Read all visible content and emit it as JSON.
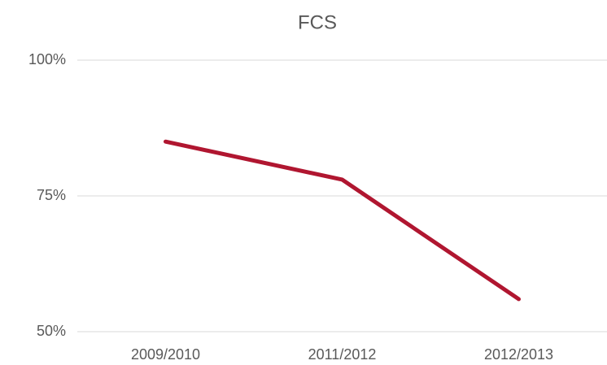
{
  "chart_data": {
    "type": "line",
    "title": "FCS",
    "categories": [
      "2009/2010",
      "2011/2012",
      "2012/2013"
    ],
    "values": [
      85,
      78,
      56
    ],
    "color": "#b01630",
    "ylim": [
      50,
      100
    ],
    "yticks": [
      {
        "value": 50,
        "label": "50%"
      },
      {
        "value": 75,
        "label": "75%"
      },
      {
        "value": 100,
        "label": "100%"
      }
    ],
    "grid": true
  }
}
